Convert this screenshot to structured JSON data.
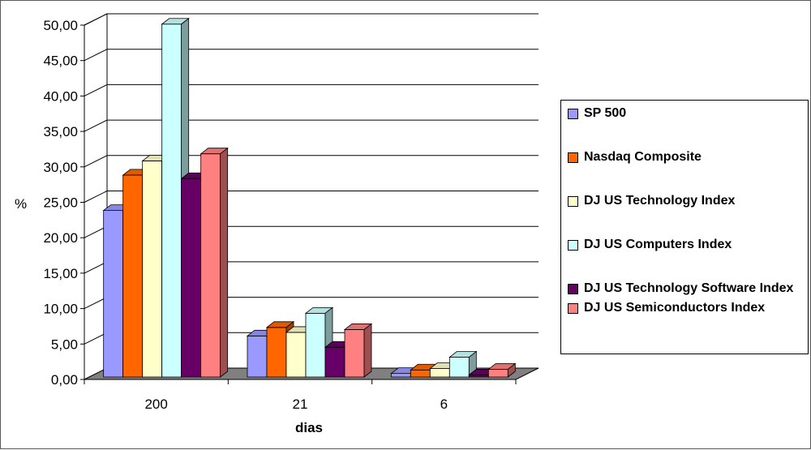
{
  "chart_data": {
    "type": "bar",
    "title": "",
    "xlabel": "dias",
    "ylabel": "%",
    "ylim": [
      0,
      50
    ],
    "y_ticks": [
      "0,00",
      "5,00",
      "10,00",
      "15,00",
      "20,00",
      "25,00",
      "30,00",
      "35,00",
      "40,00",
      "45,00",
      "50,00"
    ],
    "categories": [
      "200",
      "21",
      "6"
    ],
    "legend_position": "right",
    "grid": true,
    "style": "3d-clustered-column",
    "series": [
      {
        "name": "SP 500",
        "color": "#9999ff",
        "values": [
          23.5,
          5.8,
          0.5
        ]
      },
      {
        "name": "Nasdaq Composite",
        "color": "#ff6600",
        "values": [
          28.5,
          7.0,
          1.0
        ]
      },
      {
        "name": "DJ US Technology Index",
        "color": "#ffffcc",
        "values": [
          30.5,
          6.3,
          1.2
        ]
      },
      {
        "name": "DJ US Computers Index",
        "color": "#ccffff",
        "values": [
          49.8,
          9.0,
          2.8
        ]
      },
      {
        "name": "DJ US Technology Software Index",
        "color": "#660066",
        "values": [
          28.0,
          4.2,
          0.3
        ]
      },
      {
        "name": "DJ US Semiconductors Index",
        "color": "#ff8080",
        "values": [
          31.5,
          6.7,
          1.1
        ]
      }
    ]
  }
}
